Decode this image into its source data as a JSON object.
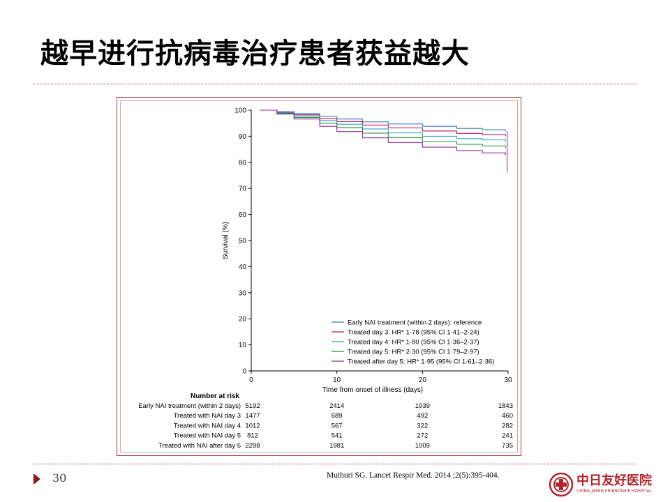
{
  "slide": {
    "title": "越早进行抗病毒治疗患者获益越大",
    "page_number": "30",
    "citation": "Muthuri SG. Lancet Respir Med. 2014 ;2(5):395-404.",
    "logo_cn": "中日友好医院",
    "logo_en": "CHINA-JAPAN FRIENDSHIP HOSPITAL"
  },
  "colors": {
    "accent": "#8b1a1a",
    "frame": "#a83a3a"
  },
  "chart_data": {
    "type": "line",
    "xlabel": "Time from onset of illness (days)",
    "ylabel": "Survival (%)",
    "xlim": [
      0,
      30
    ],
    "ylim": [
      0,
      100
    ],
    "x_ticks": [
      0,
      10,
      20,
      30
    ],
    "y_ticks": [
      0,
      10,
      20,
      30,
      40,
      50,
      60,
      70,
      80,
      90,
      100
    ],
    "grid": false,
    "legend_position": "bottom-right",
    "series": [
      {
        "name": "Early NAI treatment (within 2 days): reference",
        "color": "#3a78c9",
        "x": [
          1,
          3,
          5,
          8,
          10,
          13,
          16,
          20,
          24,
          27,
          29.7
        ],
        "y": [
          100,
          99.4,
          98.7,
          97.6,
          96.6,
          95.5,
          94.7,
          93.8,
          93.0,
          92.5,
          92.0
        ]
      },
      {
        "name": "Treated day 3: HR* 1·78 (95% CI 1·41–2·24)",
        "color": "#c2185b",
        "x": [
          1,
          3,
          5,
          8,
          10,
          13,
          16,
          20,
          24,
          27,
          29.7
        ],
        "y": [
          100,
          99.2,
          98.2,
          96.8,
          95.6,
          94.3,
          93.2,
          92.0,
          91.1,
          90.6,
          90.0
        ]
      },
      {
        "name": "Treated day 4: HR* 1·80 (95% CI 1·36–2·37)",
        "color": "#26a6c4",
        "x": [
          1,
          3,
          5,
          8,
          10,
          13,
          16,
          20,
          24,
          27,
          29.7
        ],
        "y": [
          100,
          99.0,
          97.8,
          96.0,
          94.6,
          92.8,
          91.3,
          90.0,
          89.1,
          88.6,
          88.0
        ]
      },
      {
        "name": "Treated day 5: HR* 2·30 (95% CI 1·79–2·97)",
        "color": "#2e8b3a",
        "x": [
          1,
          3,
          5,
          8,
          10,
          13,
          16,
          20,
          24,
          27,
          29.7
        ],
        "y": [
          100,
          98.8,
          97.2,
          95.0,
          93.3,
          91.2,
          89.5,
          88.0,
          86.9,
          86.3,
          85.5
        ]
      },
      {
        "name": "Treated after day 5: HR* 1·95 (95% CI 1·61–2·36)",
        "color": "#8e2a9c",
        "x": [
          1,
          3,
          5,
          8,
          10,
          13,
          16,
          20,
          24,
          27,
          29.7
        ],
        "y": [
          100,
          98.5,
          96.6,
          93.8,
          91.8,
          89.4,
          87.6,
          85.8,
          84.5,
          83.6,
          82.8
        ]
      }
    ],
    "risk_table": {
      "header": "Number at risk",
      "time_points": [
        0,
        10,
        20,
        30
      ],
      "rows": [
        {
          "label": "Early NAI treatment (within 2 days)",
          "values": [
            "5192",
            "2414",
            "1939",
            "1843"
          ]
        },
        {
          "label": "Treated with NAI day 3",
          "values": [
            "1477",
            "689",
            "492",
            "460"
          ]
        },
        {
          "label": "Treated with NAI day 4",
          "values": [
            "1012",
            "567",
            "322",
            "282"
          ]
        },
        {
          "label": "Treated with NAI day 5",
          "values": [
            "812",
            "541",
            "272",
            "241"
          ]
        },
        {
          "label": "Treated with NAI after day 5",
          "values": [
            "2298",
            "1981",
            "1009",
            "735"
          ]
        }
      ]
    }
  }
}
